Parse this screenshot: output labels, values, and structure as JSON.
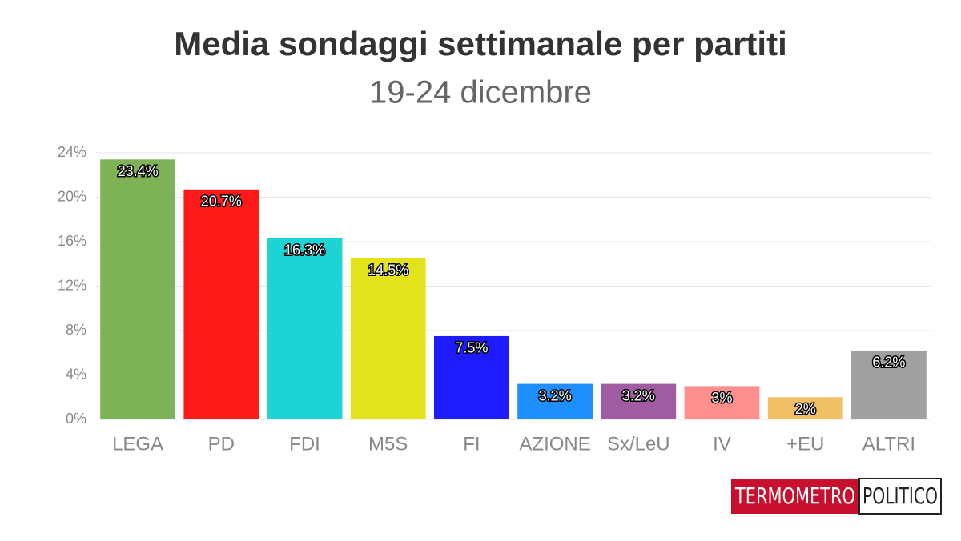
{
  "chart_data": {
    "type": "bar",
    "title": "Media sondaggi settimanale per partiti",
    "subtitle": "19-24 dicembre",
    "categories": [
      "LEGA",
      "PD",
      "FDI",
      "M5S",
      "FI",
      "AZIONE",
      "Sx/LeU",
      "IV",
      "+EU",
      "ALTRI"
    ],
    "values": [
      23.4,
      20.7,
      16.3,
      14.5,
      7.5,
      3.2,
      3.2,
      3,
      2,
      6.2
    ],
    "value_labels": [
      "23.4%",
      "20.7%",
      "16.3%",
      "14.5%",
      "7.5%",
      "3.2%",
      "3.2%",
      "3%",
      "2%",
      "6.2%"
    ],
    "colors": [
      "#7db356",
      "#ff1a1a",
      "#1cd4d4",
      "#e3e31c",
      "#1c1cff",
      "#1f8fff",
      "#a05ca0",
      "#ff8f8f",
      "#f0c064",
      "#a0a0a0"
    ],
    "ylim": [
      0,
      24
    ],
    "yticks": [
      {
        "value": 0,
        "label": "0%"
      },
      {
        "value": 4,
        "label": "4%"
      },
      {
        "value": 8,
        "label": "8%"
      },
      {
        "value": 12,
        "label": "12%"
      },
      {
        "value": 16,
        "label": "16%"
      },
      {
        "value": 20,
        "label": "20%"
      },
      {
        "value": 24,
        "label": "24%"
      }
    ],
    "grid": true
  },
  "logo": {
    "left": "TERMOMETRO",
    "right": "POLITICO"
  }
}
